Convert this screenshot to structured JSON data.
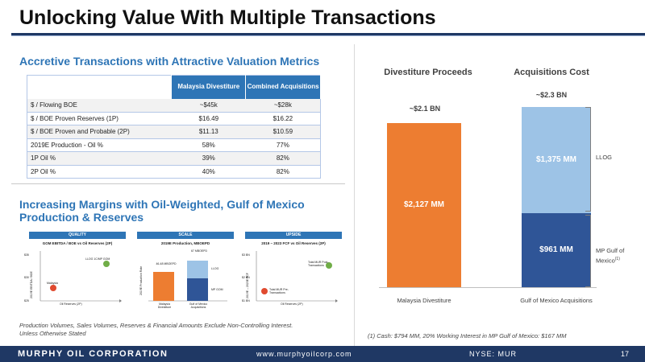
{
  "title": "Unlocking Value With Multiple Transactions",
  "left": {
    "section1_heading": "Accretive Transactions with Attractive Valuation Metrics",
    "table": {
      "headers": [
        "",
        "Malaysia Divestiture",
        "Combined Acquisitions"
      ],
      "rows": [
        [
          "$ / Flowing BOE",
          "~$45k",
          "~$28k"
        ],
        [
          "$ / BOE Proven Reserves (1P)",
          "$16.49",
          "$16.22"
        ],
        [
          "$ / BOE Proven and Probable (2P)",
          "$11.13",
          "$10.59"
        ],
        [
          "2019E Production - Oil %",
          "58%",
          "77%"
        ],
        [
          "1P Oil %",
          "39%",
          "82%"
        ],
        [
          "2P Oil %",
          "40%",
          "82%"
        ]
      ]
    },
    "section2_heading": "Increasing Margins with Oil-Weighted, Gulf of Mexico Production & Reserves",
    "mini_charts": {
      "quality": {
        "head": "QUALITY",
        "sub": "GOM EBITDA / BOE vs Oil Reserves (2P)",
        "yaxis": "2019E EBITDA / BOE",
        "xaxis": "Oil Reserves (2P)",
        "point_green": "LLOG 1C/MP GOM",
        "point_red": "Malaysia",
        "yticks": [
          "$35",
          "$30",
          "$25"
        ]
      },
      "scale": {
        "head": "SCALE",
        "sub": "2019E Production, MBOEPD",
        "yaxis": "2019E Production Rate",
        "bar1_label": "46-48 MBOEPD",
        "bar2_label": "67 MBOEPD",
        "seg_top": "LLOG",
        "seg_bottom": "MP GOM",
        "cat1": "Malaysia Divestiture",
        "cat2": "Gulf of Mexico Acquisitions"
      },
      "upside": {
        "head": "UPSIDE",
        "sub": "2019 – 2023 FCF vs Oil Reserves (2P)",
        "yaxis": "2019E – 2023E FCF",
        "xaxis": "Oil Reserves (2P)",
        "point_green": "Total MUR Post-Transactions",
        "point_red": "Total MUR Pre-Transactions",
        "yticks": [
          "$3 BN",
          "$2 BN",
          "$1 BN"
        ]
      }
    },
    "footnote": "Production Volumes, Sales Volumes, Reserves & Financial Amounts Exclude Non-Controlling Interest. Unless Otherwise Stated"
  },
  "chart_data": {
    "type": "bar",
    "categories": [
      "Malaysia Divestiture",
      "Gulf of Mexico Acquisitions"
    ],
    "column_titles": [
      "Divestiture Proceeds",
      "Acquisitions Cost"
    ],
    "totals_labels": [
      "~$2.1 BN",
      "~$2.3 BN"
    ],
    "series": [
      {
        "name": "Malaysia Divestiture",
        "values": [
          2127,
          0
        ],
        "label": "$2,127 MM",
        "color": "#ed7d31"
      },
      {
        "name": "MP Gulf of Mexico",
        "values": [
          0,
          961
        ],
        "label": "$961 MM",
        "color": "#2f5597"
      },
      {
        "name": "LLOG",
        "values": [
          0,
          1375
        ],
        "label": "$1,375 MM",
        "color": "#9dc3e6"
      }
    ],
    "side_labels": {
      "llog": "LLOG",
      "mp_gom": "MP Gulf of Mexico",
      "mp_gom_sup": "(1)"
    },
    "ylim": [
      0,
      2500
    ],
    "footnote": "(1) Cash: $794 MM, 20% Working Interest in MP Gulf of Mexico: $167 MM"
  },
  "footer": {
    "company": "MURPHY OIL CORPORATION",
    "url": "www.murphyoilcorp.com",
    "ticker": "NYSE: MUR",
    "page": "17"
  }
}
